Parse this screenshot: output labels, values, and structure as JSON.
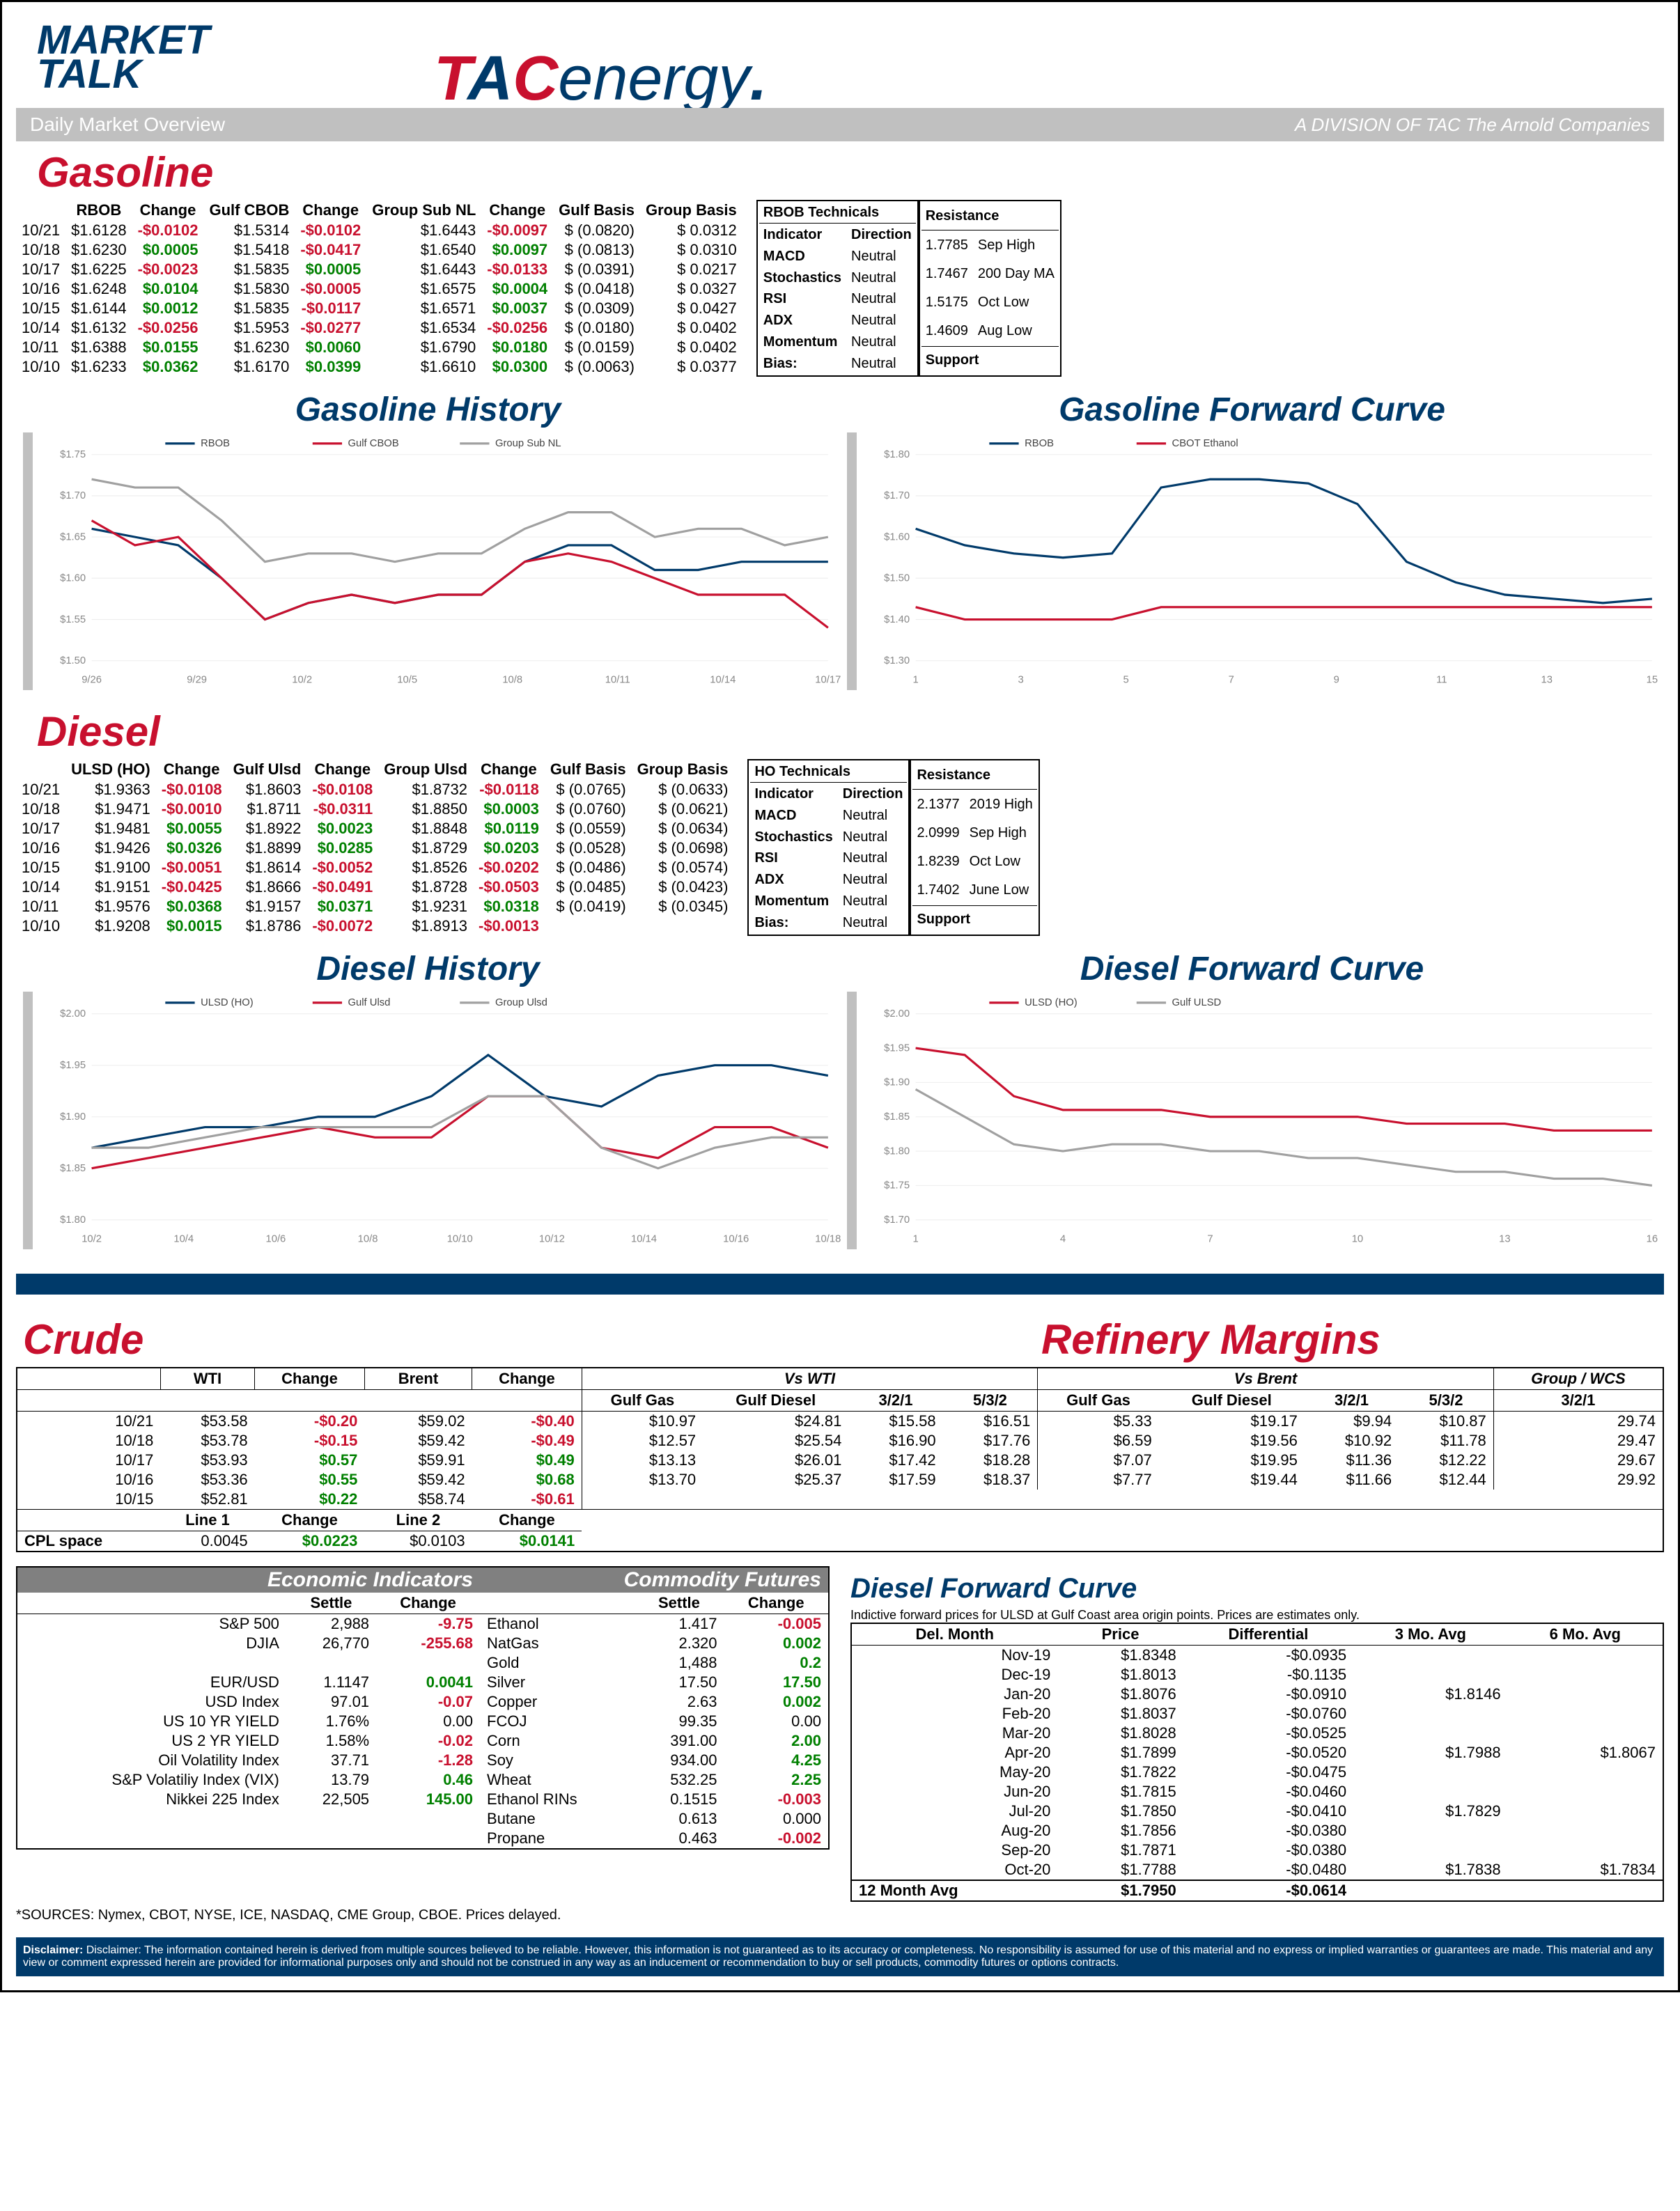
{
  "header": {
    "title1": "MARKET",
    "title2": "TALK",
    "subtitle": "Daily Market Overview",
    "division": "A DIVISION OF TAC The Arnold Companies",
    "logo_tac": "TAC",
    "logo_energy": "energy"
  },
  "colors": {
    "brand_red": "#c8102e",
    "brand_blue": "#003a6a",
    "pos": "#008000",
    "neg": "#c8102e",
    "gray": "#c0c0c0",
    "series_gray": "#a0a0a0"
  },
  "gasoline": {
    "title": "Gasoline",
    "headers": [
      "",
      "RBOB",
      "Change",
      "Gulf CBOB",
      "Change",
      "Group Sub NL",
      "Change",
      "Gulf Basis",
      "Group Basis"
    ],
    "rows": [
      [
        "10/21",
        "$1.6128",
        "-$0.0102",
        "$1.5314",
        "-$0.0102",
        "$1.6443",
        "-$0.0097",
        "$ (0.0820)",
        "$     0.0312"
      ],
      [
        "10/18",
        "$1.6230",
        "$0.0005",
        "$1.5418",
        "-$0.0417",
        "$1.6540",
        "$0.0097",
        "$ (0.0813)",
        "$     0.0310"
      ],
      [
        "10/17",
        "$1.6225",
        "-$0.0023",
        "$1.5835",
        "$0.0005",
        "$1.6443",
        "-$0.0133",
        "$ (0.0391)",
        "$     0.0217"
      ],
      [
        "10/16",
        "$1.6248",
        "$0.0104",
        "$1.5830",
        "-$0.0005",
        "$1.6575",
        "$0.0004",
        "$ (0.0418)",
        "$     0.0327"
      ],
      [
        "10/15",
        "$1.6144",
        "$0.0012",
        "$1.5835",
        "-$0.0117",
        "$1.6571",
        "$0.0037",
        "$ (0.0309)",
        "$     0.0427"
      ],
      [
        "10/14",
        "$1.6132",
        "-$0.0256",
        "$1.5953",
        "-$0.0277",
        "$1.6534",
        "-$0.0256",
        "$ (0.0180)",
        "$     0.0402"
      ],
      [
        "10/11",
        "$1.6388",
        "$0.0155",
        "$1.6230",
        "$0.0060",
        "$1.6790",
        "$0.0180",
        "$ (0.0159)",
        "$     0.0402"
      ],
      [
        "10/10",
        "$1.6233",
        "$0.0362",
        "$1.6170",
        "$0.0399",
        "$1.6610",
        "$0.0300",
        "$ (0.0063)",
        "$     0.0377"
      ]
    ],
    "tech_title": "RBOB Technicals",
    "tech_cols": [
      "Indicator",
      "Direction"
    ],
    "tech_rows": [
      [
        "MACD",
        "Neutral"
      ],
      [
        "Stochastics",
        "Neutral"
      ],
      [
        "RSI",
        "Neutral"
      ],
      [
        "ADX",
        "Neutral"
      ],
      [
        "Momentum",
        "Neutral"
      ],
      [
        "Bias:",
        "Neutral"
      ]
    ],
    "resistance_title": "Resistance",
    "resistance": [
      [
        "1.7785",
        "Sep High"
      ],
      [
        "1.7467",
        "200 Day MA"
      ],
      [
        "1.5175",
        "Oct Low"
      ],
      [
        "1.4609",
        "Aug Low"
      ]
    ],
    "support_title": "Support"
  },
  "gasoline_history": {
    "title": "Gasoline History",
    "legend": [
      "RBOB",
      "Gulf CBOB",
      "Group Sub NL"
    ],
    "legend_colors": [
      "#003a6a",
      "#c8102e",
      "#a0a0a0"
    ],
    "x_labels": [
      "9/26",
      "9/29",
      "10/2",
      "10/5",
      "10/8",
      "10/11",
      "10/14",
      "10/17"
    ],
    "y_labels": [
      "$1.50",
      "$1.55",
      "$1.60",
      "$1.65",
      "$1.70",
      "$1.75"
    ],
    "ylim": [
      1.5,
      1.75
    ],
    "series": {
      "rbob": [
        1.66,
        1.65,
        1.64,
        1.6,
        1.55,
        1.57,
        1.58,
        1.57,
        1.58,
        1.58,
        1.62,
        1.64,
        1.64,
        1.61,
        1.61,
        1.62,
        1.62,
        1.62
      ],
      "cbob": [
        1.67,
        1.64,
        1.65,
        1.6,
        1.55,
        1.57,
        1.58,
        1.57,
        1.58,
        1.58,
        1.62,
        1.63,
        1.62,
        1.6,
        1.58,
        1.58,
        1.58,
        1.54
      ],
      "group": [
        1.72,
        1.71,
        1.71,
        1.67,
        1.62,
        1.63,
        1.63,
        1.62,
        1.63,
        1.63,
        1.66,
        1.68,
        1.68,
        1.65,
        1.66,
        1.66,
        1.64,
        1.65
      ]
    }
  },
  "gasoline_forward": {
    "title": "Gasoline Forward Curve",
    "legend": [
      "RBOB",
      "CBOT Ethanol"
    ],
    "legend_colors": [
      "#003a6a",
      "#c8102e"
    ],
    "x_labels": [
      "1",
      "3",
      "5",
      "7",
      "9",
      "11",
      "13",
      "15"
    ],
    "y_labels": [
      "$1.30",
      "$1.40",
      "$1.50",
      "$1.60",
      "$1.70",
      "$1.80"
    ],
    "ylim": [
      1.3,
      1.8
    ],
    "series": {
      "rbob": [
        1.62,
        1.58,
        1.56,
        1.55,
        1.56,
        1.72,
        1.74,
        1.74,
        1.73,
        1.68,
        1.54,
        1.49,
        1.46,
        1.45,
        1.44,
        1.45
      ],
      "ethanol": [
        1.43,
        1.4,
        1.4,
        1.4,
        1.4,
        1.43,
        1.43,
        1.43,
        1.43,
        1.43,
        1.43,
        1.43,
        1.43,
        1.43,
        1.43,
        1.43
      ]
    }
  },
  "diesel": {
    "title": "Diesel",
    "headers": [
      "",
      "ULSD (HO)",
      "Change",
      "Gulf Ulsd",
      "Change",
      "Group Ulsd",
      "Change",
      "Gulf Basis",
      "Group Basis"
    ],
    "rows": [
      [
        "10/21",
        "$1.9363",
        "-$0.0108",
        "$1.8603",
        "-$0.0108",
        "$1.8732",
        "-$0.0118",
        "$ (0.0765)",
        "$   (0.0633)"
      ],
      [
        "10/18",
        "$1.9471",
        "-$0.0010",
        "$1.8711",
        "-$0.0311",
        "$1.8850",
        "$0.0003",
        "$ (0.0760)",
        "$   (0.0621)"
      ],
      [
        "10/17",
        "$1.9481",
        "$0.0055",
        "$1.8922",
        "$0.0023",
        "$1.8848",
        "$0.0119",
        "$ (0.0559)",
        "$   (0.0634)"
      ],
      [
        "10/16",
        "$1.9426",
        "$0.0326",
        "$1.8899",
        "$0.0285",
        "$1.8729",
        "$0.0203",
        "$ (0.0528)",
        "$   (0.0698)"
      ],
      [
        "10/15",
        "$1.9100",
        "-$0.0051",
        "$1.8614",
        "-$0.0052",
        "$1.8526",
        "-$0.0202",
        "$ (0.0486)",
        "$   (0.0574)"
      ],
      [
        "10/14",
        "$1.9151",
        "-$0.0425",
        "$1.8666",
        "-$0.0491",
        "$1.8728",
        "-$0.0503",
        "$ (0.0485)",
        "$   (0.0423)"
      ],
      [
        "10/11",
        "$1.9576",
        "$0.0368",
        "$1.9157",
        "$0.0371",
        "$1.9231",
        "$0.0318",
        "$ (0.0419)",
        "$   (0.0345)"
      ],
      [
        "10/10",
        "$1.9208",
        "$0.0015",
        "$1.8786",
        "-$0.0072",
        "$1.8913",
        "-$0.0013",
        "",
        ""
      ]
    ],
    "tech_title": "HO Technicals",
    "tech_cols": [
      "Indicator",
      "Direction"
    ],
    "tech_rows": [
      [
        "MACD",
        "Neutral"
      ],
      [
        "Stochastics",
        "Neutral"
      ],
      [
        "RSI",
        "Neutral"
      ],
      [
        "ADX",
        "Neutral"
      ],
      [
        "Momentum",
        "Neutral"
      ],
      [
        "Bias:",
        "Neutral"
      ]
    ],
    "resistance_title": "Resistance",
    "resistance": [
      [
        "2.1377",
        "2019 High"
      ],
      [
        "2.0999",
        "Sep High"
      ],
      [
        "1.8239",
        "Oct Low"
      ],
      [
        "1.7402",
        "June Low"
      ]
    ],
    "support_title": "Support"
  },
  "diesel_history": {
    "title": "Diesel History",
    "legend": [
      "ULSD (HO)",
      "Gulf Ulsd",
      "Group Ulsd"
    ],
    "legend_colors": [
      "#003a6a",
      "#c8102e",
      "#a0a0a0"
    ],
    "x_labels": [
      "10/2",
      "10/4",
      "10/6",
      "10/8",
      "10/10",
      "10/12",
      "10/14",
      "10/16",
      "10/18"
    ],
    "y_labels": [
      "$1.80",
      "$1.85",
      "$1.90",
      "$1.95",
      "$2.00"
    ],
    "ylim": [
      1.8,
      2.0
    ],
    "series": {
      "ulsd": [
        1.87,
        1.88,
        1.89,
        1.89,
        1.9,
        1.9,
        1.92,
        1.96,
        1.92,
        1.91,
        1.94,
        1.95,
        1.95,
        1.94
      ],
      "gulf": [
        1.85,
        1.86,
        1.87,
        1.88,
        1.89,
        1.88,
        1.88,
        1.92,
        1.92,
        1.87,
        1.86,
        1.89,
        1.89,
        1.87
      ],
      "group": [
        1.87,
        1.87,
        1.88,
        1.89,
        1.89,
        1.89,
        1.89,
        1.92,
        1.92,
        1.87,
        1.85,
        1.87,
        1.88,
        1.88
      ]
    }
  },
  "diesel_forward": {
    "title": "Diesel Forward Curve",
    "legend": [
      "ULSD (HO)",
      "Gulf ULSD"
    ],
    "legend_colors": [
      "#c8102e",
      "#a0a0a0"
    ],
    "x_labels": [
      "1",
      "4",
      "7",
      "10",
      "13",
      "16"
    ],
    "y_labels": [
      "$1.70",
      "$1.75",
      "$1.80",
      "$1.85",
      "$1.90",
      "$1.95",
      "$2.00"
    ],
    "ylim": [
      1.7,
      2.0
    ],
    "series": {
      "ulsd": [
        1.95,
        1.94,
        1.88,
        1.86,
        1.86,
        1.86,
        1.85,
        1.85,
        1.85,
        1.85,
        1.84,
        1.84,
        1.84,
        1.83,
        1.83,
        1.83
      ],
      "gulf": [
        1.89,
        1.85,
        1.81,
        1.8,
        1.81,
        1.81,
        1.8,
        1.8,
        1.79,
        1.79,
        1.78,
        1.77,
        1.77,
        1.76,
        1.76,
        1.75
      ]
    }
  },
  "crude": {
    "title": "Crude",
    "headers": [
      "",
      "WTI",
      "Change",
      "Brent",
      "Change"
    ],
    "rows": [
      [
        "10/21",
        "$53.58",
        "-$0.20",
        "$59.02",
        "-$0.40"
      ],
      [
        "10/18",
        "$53.78",
        "-$0.15",
        "$59.42",
        "-$0.49"
      ],
      [
        "10/17",
        "$53.93",
        "$0.57",
        "$59.91",
        "$0.49"
      ],
      [
        "10/16",
        "$53.36",
        "$0.55",
        "$59.42",
        "$0.68"
      ],
      [
        "10/15",
        "$52.81",
        "$0.22",
        "$58.74",
        "-$0.61"
      ]
    ],
    "cpl_label": "CPL space",
    "cpl_headers": [
      "Line 1",
      "Change",
      "Line 2",
      "Change"
    ],
    "cpl_row": [
      "0.0045",
      "$0.0223",
      "$0.0103",
      "$0.0141"
    ]
  },
  "refinery": {
    "title": "Refinery Margins",
    "group_headers": [
      "Vs WTI",
      "Vs Brent",
      "Group / WCS"
    ],
    "col_headers": [
      "Gulf Gas",
      "Gulf Diesel",
      "3/2/1",
      "5/3/2",
      "Gulf Gas",
      "Gulf Diesel",
      "3/2/1",
      "5/3/2",
      "3/2/1"
    ],
    "rows": [
      [
        "$10.97",
        "$24.81",
        "$15.58",
        "$16.51",
        "$5.33",
        "$19.17",
        "$9.94",
        "$10.87",
        "29.74"
      ],
      [
        "$12.57",
        "$25.54",
        "$16.90",
        "$17.76",
        "$6.59",
        "$19.56",
        "$10.92",
        "$11.78",
        "29.47"
      ],
      [
        "$13.13",
        "$26.01",
        "$17.42",
        "$18.28",
        "$7.07",
        "$19.95",
        "$11.36",
        "$12.22",
        "29.67"
      ],
      [
        "$13.70",
        "$25.37",
        "$17.59",
        "$18.37",
        "$7.77",
        "$19.44",
        "$11.66",
        "$12.44",
        "29.92"
      ]
    ]
  },
  "econ": {
    "title": "Economic Indicators",
    "headers": [
      "",
      "Settle",
      "Change"
    ],
    "rows": [
      [
        "S&P 500",
        "2,988",
        "-9.75"
      ],
      [
        "DJIA",
        "26,770",
        "-255.68"
      ],
      [
        "",
        "",
        ""
      ],
      [
        "EUR/USD",
        "1.1147",
        "0.0041"
      ],
      [
        "USD Index",
        "97.01",
        "-0.07"
      ],
      [
        "US 10 YR YIELD",
        "1.76%",
        "0.00"
      ],
      [
        "US 2 YR YIELD",
        "1.58%",
        "-0.02"
      ],
      [
        "Oil Volatility Index",
        "37.71",
        "-1.28"
      ],
      [
        "S&P Volatiliy Index (VIX)",
        "13.79",
        "0.46"
      ],
      [
        "Nikkei 225 Index",
        "22,505",
        "145.00"
      ]
    ]
  },
  "commodities": {
    "title": "Commodity Futures",
    "headers": [
      "",
      "Settle",
      "Change"
    ],
    "rows": [
      [
        "Ethanol",
        "1.417",
        "-0.005"
      ],
      [
        "NatGas",
        "2.320",
        "0.002"
      ],
      [
        "Gold",
        "1,488",
        "0.2"
      ],
      [
        "Silver",
        "17.50",
        "17.50"
      ],
      [
        "Copper",
        "2.63",
        "0.002"
      ],
      [
        "FCOJ",
        "99.35",
        "0.00"
      ],
      [
        "Corn",
        "391.00",
        "2.00"
      ],
      [
        "Soy",
        "934.00",
        "4.25"
      ],
      [
        "Wheat",
        "532.25",
        "2.25"
      ],
      [
        "Ethanol RINs",
        "0.1515",
        "-0.003"
      ],
      [
        "Butane",
        "0.613",
        "0.000"
      ],
      [
        "Propane",
        "0.463",
        "-0.002"
      ]
    ]
  },
  "diesel_forward_table": {
    "title": "Diesel Forward Curve",
    "subtitle": "Indictive forward prices for ULSD at Gulf Coast area origin points.  Prices are estimates only.",
    "headers": [
      "Del. Month",
      "Price",
      "Differential",
      "3 Mo. Avg",
      "6 Mo. Avg"
    ],
    "rows": [
      [
        "Nov-19",
        "$1.8348",
        "-$0.0935",
        "",
        ""
      ],
      [
        "Dec-19",
        "$1.8013",
        "-$0.1135",
        "",
        ""
      ],
      [
        "Jan-20",
        "$1.8076",
        "-$0.0910",
        "$1.8146",
        ""
      ],
      [
        "Feb-20",
        "$1.8037",
        "-$0.0760",
        "",
        ""
      ],
      [
        "Mar-20",
        "$1.8028",
        "-$0.0525",
        "",
        ""
      ],
      [
        "Apr-20",
        "$1.7899",
        "-$0.0520",
        "$1.7988",
        "$1.8067"
      ],
      [
        "May-20",
        "$1.7822",
        "-$0.0475",
        "",
        ""
      ],
      [
        "Jun-20",
        "$1.7815",
        "-$0.0460",
        "",
        ""
      ],
      [
        "Jul-20",
        "$1.7850",
        "-$0.0410",
        "$1.7829",
        ""
      ],
      [
        "Aug-20",
        "$1.7856",
        "-$0.0380",
        "",
        ""
      ],
      [
        "Sep-20",
        "$1.7871",
        "-$0.0380",
        "",
        ""
      ],
      [
        "Oct-20",
        "$1.7788",
        "-$0.0480",
        "$1.7838",
        "$1.7834"
      ]
    ],
    "footer": [
      "12 Month Avg",
      "$1.7950",
      "-$0.0614",
      "",
      ""
    ]
  },
  "sources": "*SOURCES: Nymex, CBOT, NYSE, ICE, NASDAQ, CME Group, CBOE.   Prices delayed.",
  "disclaimer": "Disclaimer: The information contained herein is derived from multiple sources believed to be reliable.  However, this information is not guaranteed as to its accuracy or completeness. No responsibility is assumed for use of this material and no express or implied  warranties or guarantees are made. This material and any view or comment expressed herein are provided for informational purposes only and should not be construed in any way as an inducement or recommendation to buy or sell products, commodity futures or options contracts."
}
